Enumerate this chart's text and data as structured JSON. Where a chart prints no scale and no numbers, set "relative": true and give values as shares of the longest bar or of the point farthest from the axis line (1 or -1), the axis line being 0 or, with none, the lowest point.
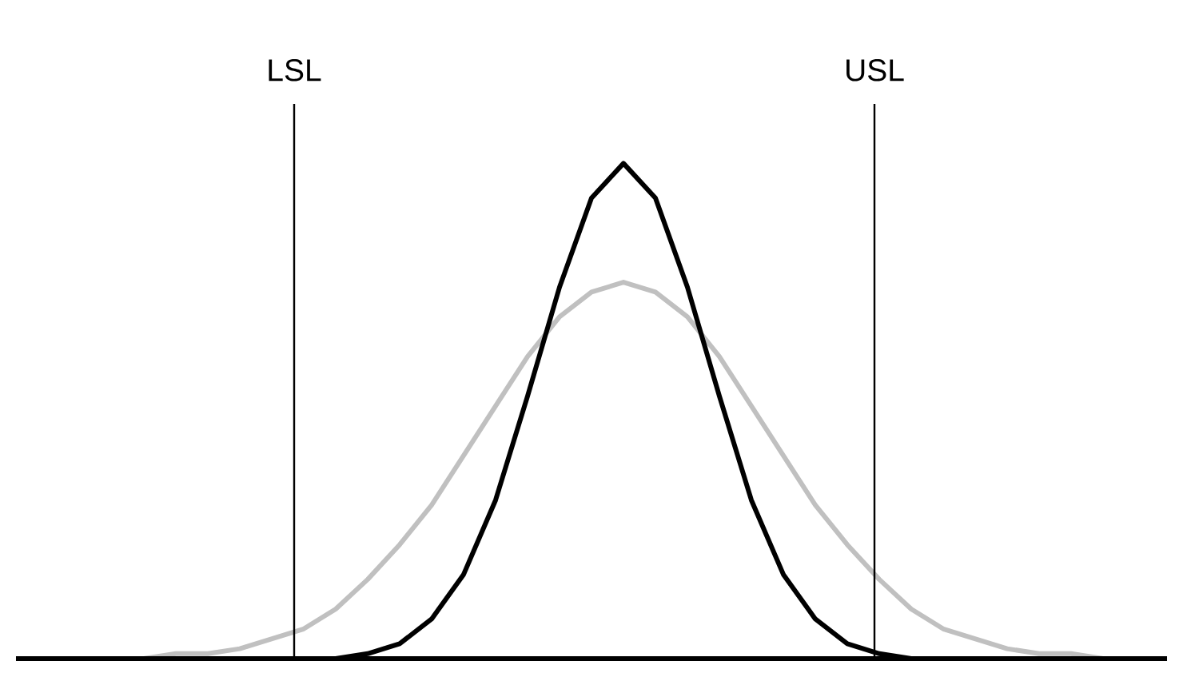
{
  "chart_data": {
    "type": "line",
    "relative": true,
    "marker": "none",
    "line_style": "solid",
    "categories": [
      null,
      null,
      null,
      null,
      null,
      null,
      null,
      null,
      null,
      null,
      null,
      null,
      null,
      null,
      null,
      null,
      null,
      null,
      null,
      null,
      null,
      null,
      null,
      null,
      null,
      null,
      null,
      null,
      null,
      null,
      null,
      null,
      null,
      null,
      null,
      null,
      null
    ],
    "series": [
      {
        "color": "#c0c0c0",
        "values": [
          0,
          0,
          0,
          0,
          0,
          0.01,
          0.01,
          0.02,
          0.04,
          0.06,
          0.1,
          0.16,
          0.23,
          0.31,
          0.41,
          0.51,
          0.61,
          0.69,
          0.74,
          0.76,
          0.74,
          0.69,
          0.61,
          0.51,
          0.41,
          0.31,
          0.23,
          0.16,
          0.1,
          0.06,
          0.04,
          0.02,
          0.01,
          0.01,
          0,
          0,
          0
        ]
      },
      {
        "color": "#000000",
        "values": [
          0,
          0,
          0,
          0,
          0,
          0,
          0,
          0,
          0,
          0,
          0,
          0.01,
          0.03,
          0.08,
          0.17,
          0.32,
          0.53,
          0.75,
          0.93,
          1,
          0.93,
          0.75,
          0.53,
          0.32,
          0.17,
          0.08,
          0.03,
          0.01,
          0,
          0,
          0,
          0,
          0,
          0,
          0,
          0,
          0
        ]
      }
    ],
    "annotations": [
      "LSL",
      "USL"
    ]
  }
}
